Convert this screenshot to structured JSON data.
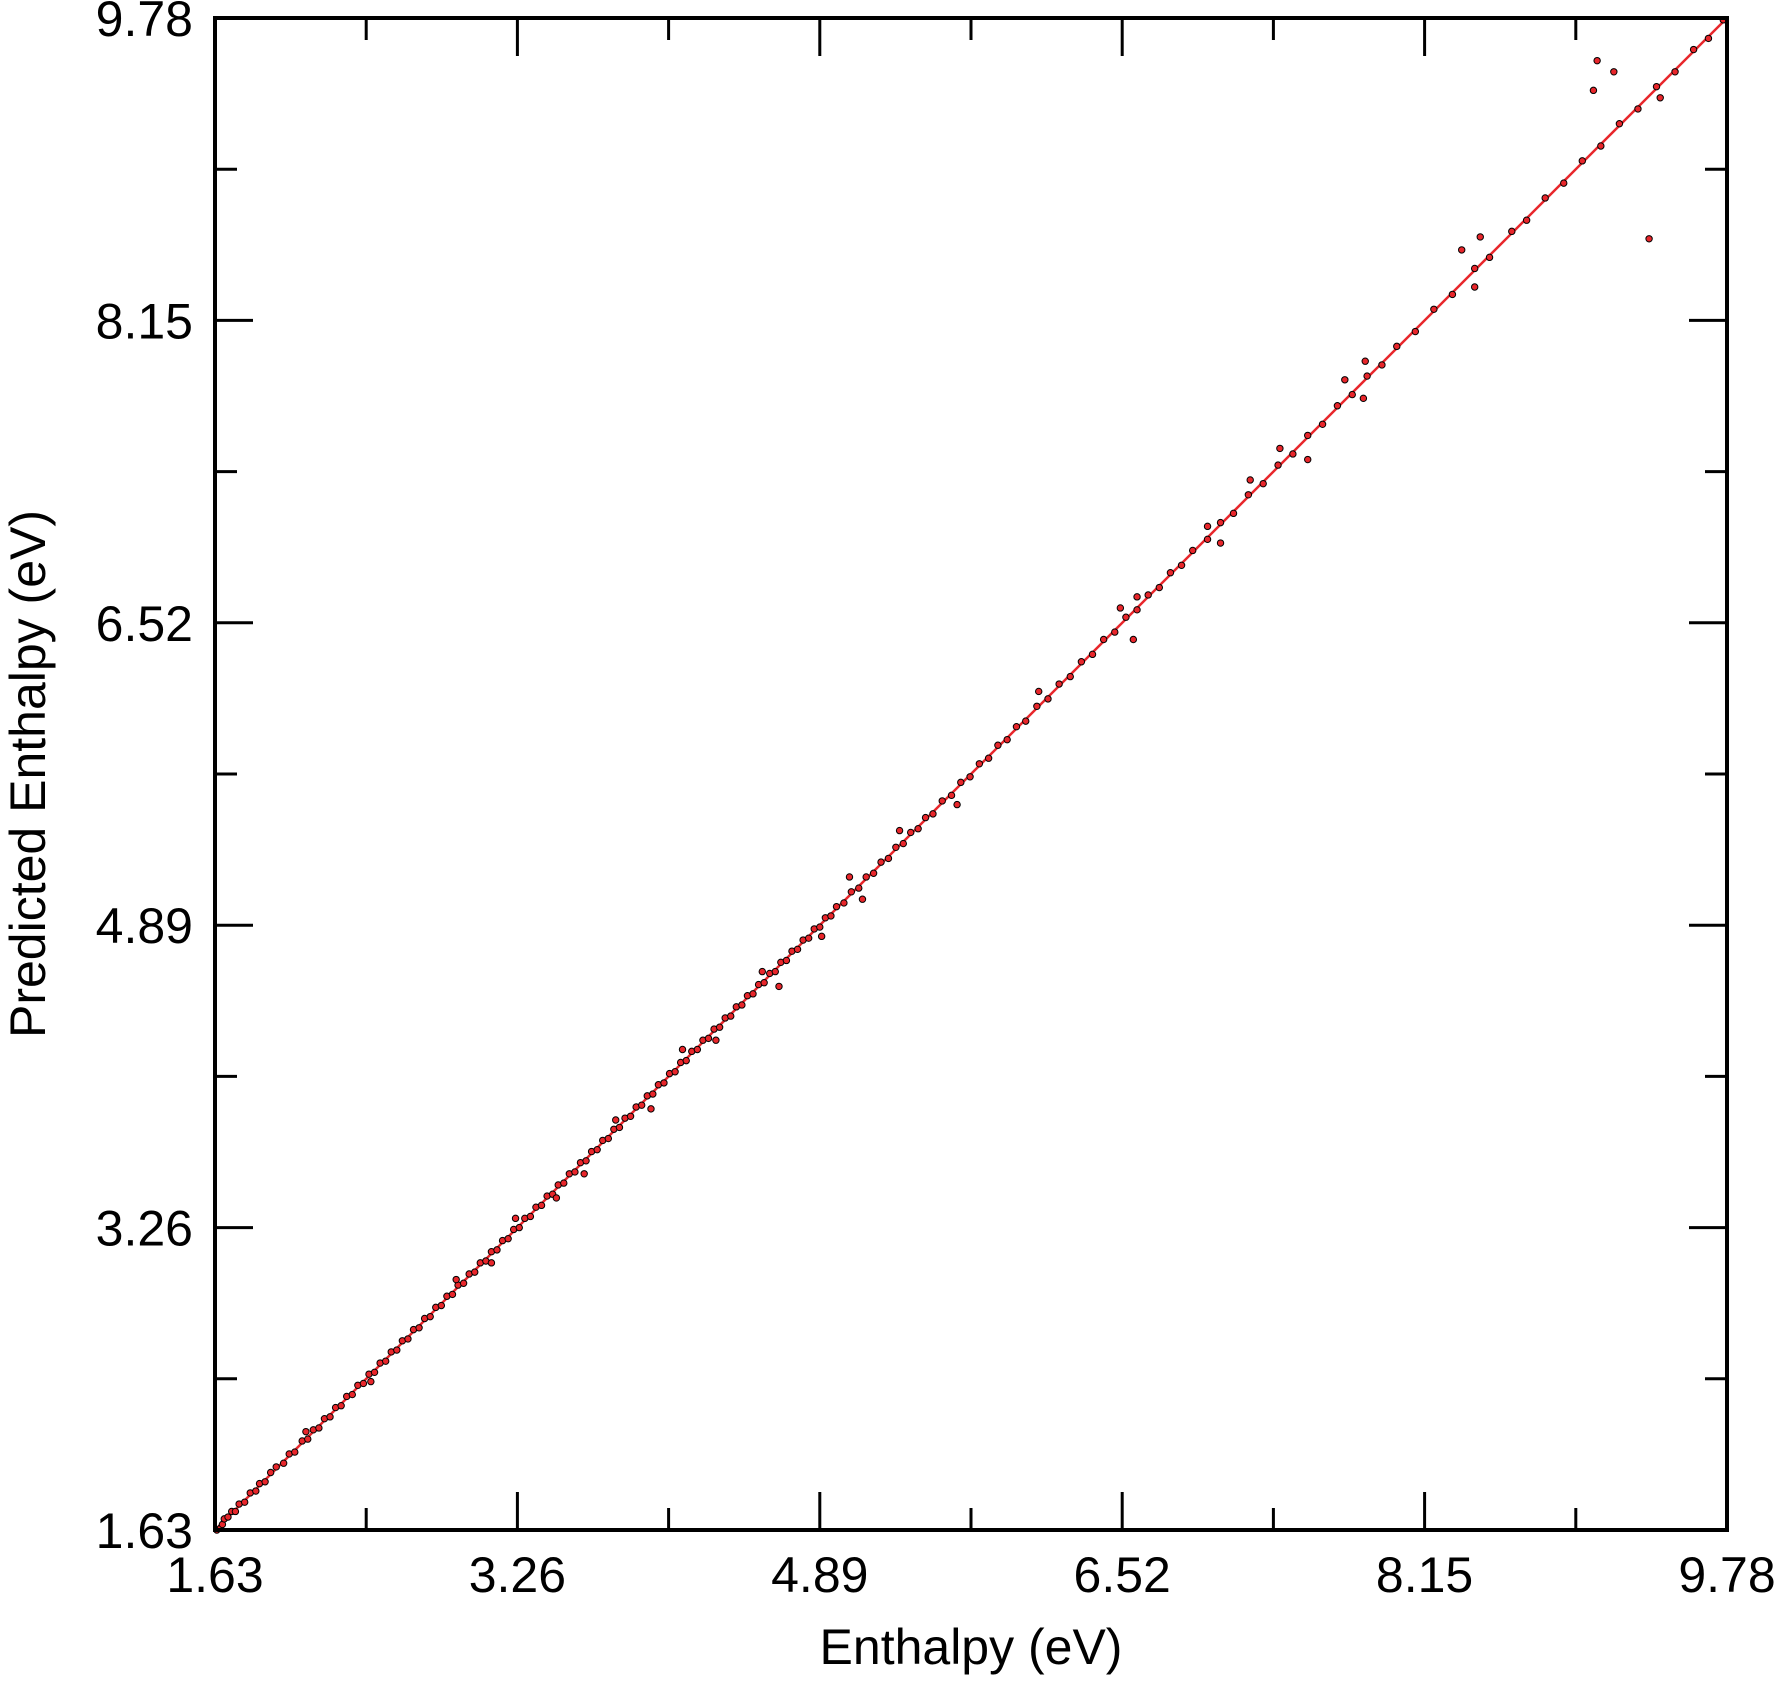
{
  "chart_data": {
    "type": "scatter",
    "title": "",
    "xlabel": "Enthalpy (eV)",
    "ylabel": "Predicted Enthalpy (eV)",
    "xlim": [
      1.63,
      9.78
    ],
    "ylim": [
      1.63,
      9.78
    ],
    "xticks": [
      "1.63",
      "3.26",
      "4.89",
      "6.52",
      "8.15",
      "9.78"
    ],
    "yticks": [
      "1.63",
      "3.26",
      "4.89",
      "6.52",
      "8.15",
      "9.78"
    ],
    "xtick_values": [
      1.63,
      3.26,
      4.89,
      6.52,
      8.15,
      9.78
    ],
    "ytick_values": [
      1.63,
      3.26,
      4.89,
      6.52,
      8.15,
      9.78
    ],
    "grid": false,
    "legend": false,
    "series": [
      {
        "kind": "points",
        "marker_fill": "#e8262b",
        "marker_edge": "#000000",
        "x": [
          1.64,
          1.66,
          1.67,
          1.68,
          1.7,
          1.72,
          1.74,
          1.76,
          1.79,
          1.82,
          1.85,
          1.87,
          1.9,
          1.93,
          1.96,
          2.0,
          2.03,
          2.06,
          2.1,
          2.13,
          2.16,
          2.19,
          2.22,
          2.25,
          2.28,
          2.31,
          2.34,
          2.37,
          2.4,
          2.43,
          2.46,
          2.49,
          2.52,
          2.55,
          2.58,
          2.61,
          2.64,
          2.67,
          2.7,
          2.73,
          2.76,
          2.79,
          2.82,
          2.85,
          2.88,
          2.91,
          2.94,
          2.97,
          3.0,
          3.03,
          3.06,
          3.09,
          3.12,
          3.15,
          3.18,
          3.21,
          3.24,
          3.27,
          3.3,
          3.33,
          3.36,
          3.39,
          3.42,
          3.45,
          3.48,
          3.51,
          3.54,
          3.57,
          3.6,
          3.63,
          3.66,
          3.69,
          3.72,
          3.75,
          3.78,
          3.81,
          3.84,
          3.87,
          3.9,
          3.93,
          3.96,
          3.99,
          4.02,
          4.05,
          4.08,
          4.11,
          4.14,
          4.17,
          4.2,
          4.23,
          4.26,
          4.29,
          4.32,
          4.35,
          4.38,
          4.41,
          4.44,
          4.47,
          4.5,
          4.53,
          4.56,
          4.59,
          4.62,
          4.65,
          4.68,
          4.71,
          4.74,
          4.77,
          4.8,
          4.83,
          4.86,
          4.89,
          4.92,
          4.95,
          4.98,
          5.02,
          5.06,
          5.1,
          5.14,
          5.18,
          5.22,
          5.26,
          5.3,
          5.34,
          5.38,
          5.42,
          5.46,
          5.5,
          5.55,
          5.6,
          5.65,
          5.7,
          5.75,
          5.8,
          5.85,
          5.9,
          5.95,
          6.0,
          6.06,
          6.12,
          6.18,
          6.24,
          6.3,
          6.36,
          6.42,
          6.48,
          6.54,
          6.6,
          6.66,
          6.72,
          6.78,
          6.84,
          6.9,
          6.98,
          7.05,
          7.12,
          7.2,
          7.28,
          7.36,
          7.44,
          7.52,
          7.6,
          7.68,
          7.76,
          7.84,
          7.92,
          8.0,
          8.1,
          8.2,
          8.3,
          8.42,
          8.5,
          8.62,
          8.7,
          8.8,
          8.9,
          9.0,
          9.1,
          9.2,
          9.3,
          9.4,
          9.5,
          9.6,
          9.68,
          9.76,
          2.12,
          2.47,
          2.93,
          3.12,
          3.25,
          3.47,
          3.62,
          3.79,
          3.98,
          4.15,
          4.33,
          4.58,
          4.67,
          4.9,
          5.05,
          5.12,
          5.32,
          5.63,
          6.07,
          6.51,
          6.58,
          6.6,
          6.98,
          7.05,
          7.21,
          7.37,
          7.52,
          7.72,
          7.82,
          7.83,
          8.35,
          8.42,
          8.45,
          9.06,
          9.08,
          9.17,
          9.36,
          9.42
        ],
        "y": [
          1.63,
          1.64,
          1.66,
          1.69,
          1.7,
          1.73,
          1.73,
          1.77,
          1.78,
          1.83,
          1.84,
          1.88,
          1.89,
          1.94,
          1.97,
          1.99,
          2.04,
          2.05,
          2.11,
          2.12,
          2.17,
          2.18,
          2.23,
          2.24,
          2.29,
          2.3,
          2.35,
          2.36,
          2.41,
          2.42,
          2.47,
          2.48,
          2.53,
          2.54,
          2.59,
          2.6,
          2.65,
          2.66,
          2.71,
          2.72,
          2.77,
          2.78,
          2.83,
          2.84,
          2.89,
          2.9,
          2.95,
          2.96,
          3.01,
          3.02,
          3.07,
          3.08,
          3.13,
          3.14,
          3.19,
          3.2,
          3.25,
          3.26,
          3.31,
          3.32,
          3.37,
          3.38,
          3.43,
          3.44,
          3.49,
          3.5,
          3.55,
          3.56,
          3.61,
          3.62,
          3.67,
          3.68,
          3.73,
          3.74,
          3.79,
          3.8,
          3.85,
          3.86,
          3.91,
          3.92,
          3.97,
          3.98,
          4.03,
          4.04,
          4.09,
          4.1,
          4.15,
          4.16,
          4.21,
          4.22,
          4.27,
          4.28,
          4.33,
          4.34,
          4.39,
          4.4,
          4.45,
          4.46,
          4.51,
          4.52,
          4.57,
          4.58,
          4.63,
          4.64,
          4.69,
          4.7,
          4.75,
          4.76,
          4.81,
          4.82,
          4.87,
          4.88,
          4.93,
          4.94,
          4.99,
          5.01,
          5.07,
          5.09,
          5.15,
          5.17,
          5.23,
          5.25,
          5.31,
          5.33,
          5.39,
          5.41,
          5.47,
          5.49,
          5.56,
          5.59,
          5.66,
          5.69,
          5.76,
          5.79,
          5.86,
          5.89,
          5.96,
          5.99,
          6.07,
          6.11,
          6.19,
          6.23,
          6.31,
          6.35,
          6.43,
          6.47,
          6.55,
          6.59,
          6.67,
          6.71,
          6.79,
          6.83,
          6.91,
          6.97,
          7.06,
          7.11,
          7.21,
          7.27,
          7.37,
          7.43,
          7.53,
          7.59,
          7.69,
          7.75,
          7.85,
          7.91,
          8.01,
          8.09,
          8.21,
          8.29,
          8.43,
          8.49,
          8.63,
          8.69,
          8.81,
          8.89,
          9.01,
          9.09,
          9.21,
          9.29,
          9.41,
          9.49,
          9.61,
          9.67,
          9.77,
          2.16,
          2.43,
          2.98,
          3.07,
          3.31,
          3.42,
          3.55,
          3.84,
          3.9,
          4.22,
          4.27,
          4.64,
          4.56,
          4.83,
          5.15,
          5.03,
          5.4,
          5.54,
          6.15,
          6.6,
          6.43,
          6.66,
          7.04,
          6.95,
          7.29,
          7.46,
          7.4,
          7.83,
          7.73,
          7.93,
          8.53,
          8.33,
          8.6,
          9.39,
          9.55,
          9.49,
          8.59,
          9.35
        ]
      },
      {
        "kind": "fit-line",
        "color": "#e8262b",
        "x": [
          1.63,
          9.78
        ],
        "y": [
          1.63,
          9.78
        ]
      }
    ]
  }
}
